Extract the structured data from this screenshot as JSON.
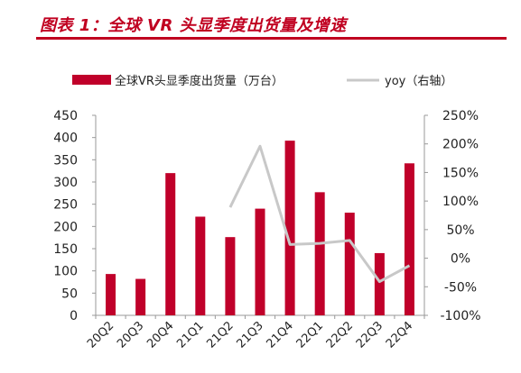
{
  "figure": {
    "title": "图表 1：全球 VR 头显季度出货量及增速"
  },
  "colors": {
    "bar": "#c0002a",
    "line": "#c8c8c8",
    "title": "#c00020"
  },
  "chart_data": {
    "type": "bar",
    "categories": [
      "20Q2",
      "20Q3",
      "20Q4",
      "21Q1",
      "21Q2",
      "21Q3",
      "21Q4",
      "22Q1",
      "22Q2",
      "22Q3",
      "22Q4"
    ],
    "series": [
      {
        "name": "全球VR头显季度出货量（万台）",
        "type": "bar",
        "axis": "left",
        "values": [
          93,
          82,
          320,
          222,
          176,
          240,
          393,
          277,
          231,
          140,
          342
        ]
      },
      {
        "name": "yoy（右轴）",
        "type": "line",
        "axis": "right",
        "values": [
          null,
          null,
          null,
          null,
          89,
          196,
          24,
          26,
          31,
          -41,
          -13
        ]
      }
    ],
    "left_axis": {
      "min": 0,
      "max": 450,
      "ticks": [
        "0",
        "50",
        "100",
        "150",
        "200",
        "250",
        "300",
        "350",
        "400",
        "450"
      ]
    },
    "right_axis": {
      "min": -100,
      "max": 250,
      "ticks": [
        "-100%",
        "-50%",
        "0%",
        "50%",
        "100%",
        "150%",
        "200%",
        "250%"
      ]
    },
    "legend_position": "top",
    "grid": false
  }
}
